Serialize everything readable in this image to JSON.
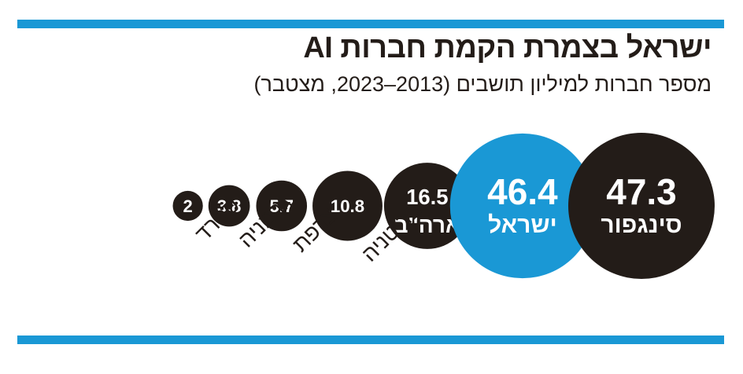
{
  "colors": {
    "dark": "#231c18",
    "accent": "#1a98d5",
    "rule": "#1a98d5",
    "text_on_circle": "#ffffff"
  },
  "chart_data": {
    "type": "bubble",
    "title": "ישראל בצמרת הקמת חברות AI",
    "subtitle": "מספר חברות למיליון תושבים (2013–2023, מצטבר)",
    "categories": [
      "סינגפור",
      "ישראל",
      "ארה\"ב",
      "בריטניה",
      "צרפת",
      "גרמניה",
      "ספרד"
    ],
    "values": [
      47.3,
      46.4,
      16.5,
      10.8,
      5.7,
      3.8,
      2
    ],
    "value_labels": [
      "47.3",
      "46.4",
      "16.5",
      "10.8",
      "5.7",
      "3.8",
      "2"
    ],
    "highlight": "ישראל",
    "legend": "none",
    "grid": false
  }
}
